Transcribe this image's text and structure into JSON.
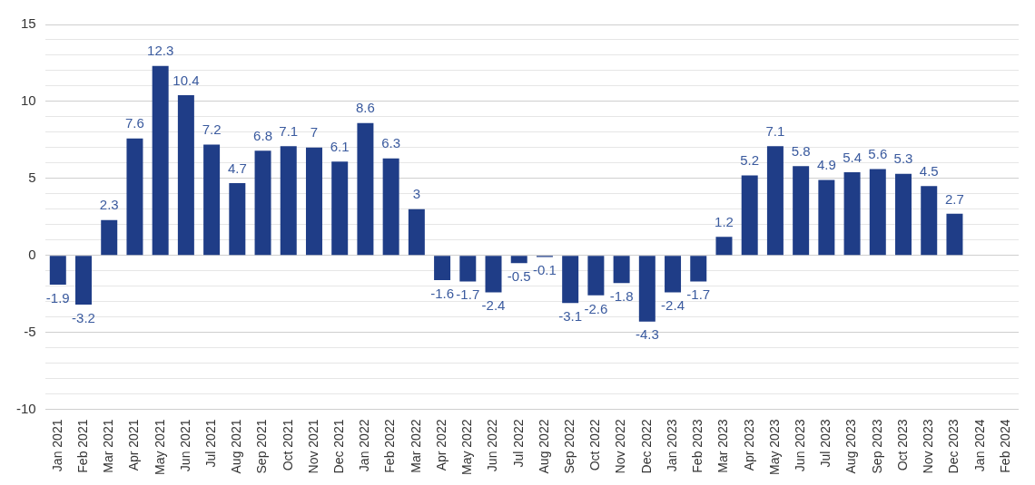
{
  "chart_data": {
    "type": "bar",
    "categories": [
      "Jan 2021",
      "Feb 2021",
      "Mar 2021",
      "Apr 2021",
      "May 2021",
      "Jun 2021",
      "Jul 2021",
      "Aug 2021",
      "Sep 2021",
      "Oct 2021",
      "Nov 2021",
      "Dec 2021",
      "Jan 2022",
      "Feb 2022",
      "Mar 2022",
      "Apr 2022",
      "May 2022",
      "Jun 2022",
      "Jul 2022",
      "Aug 2022",
      "Sep 2022",
      "Oct 2022",
      "Nov 2022",
      "Dec 2022",
      "Jan 2023",
      "Feb 2023",
      "Mar 2023",
      "Apr 2023",
      "May 2023",
      "Jun 2023",
      "Jul 2023",
      "Aug 2023",
      "Sep 2023",
      "Oct 2023",
      "Nov 2023",
      "Dec 2023",
      "Jan 2024",
      "Feb 2024"
    ],
    "values": [
      -1.9,
      -3.2,
      2.3,
      7.6,
      12.3,
      10.4,
      7.2,
      4.7,
      6.8,
      7.1,
      7,
      6.1,
      8.6,
      6.3,
      3,
      -1.6,
      -1.7,
      -2.4,
      -0.5,
      -0.1,
      -3.1,
      -2.6,
      -1.8,
      -4.3,
      -2.4,
      -1.7,
      1.2,
      5.2,
      7.1,
      5.8,
      4.9,
      5.4,
      5.6,
      5.3,
      4.5,
      2.7,
      null,
      null
    ],
    "color": "#1f3d87",
    "ylim": [
      -10,
      15
    ],
    "yticks": [
      -10,
      {
        "value": -9,
        "label": null
      },
      {
        "value": -8,
        "label": null
      },
      {
        "value": -7,
        "label": null
      },
      {
        "value": -6,
        "label": null
      },
      -5,
      {
        "value": -4,
        "label": null
      },
      {
        "value": -3,
        "label": null
      },
      {
        "value": -2,
        "label": null
      },
      {
        "value": -1,
        "label": null
      },
      0,
      {
        "value": 1,
        "label": null
      },
      {
        "value": 2,
        "label": null
      },
      {
        "value": 3,
        "label": null
      },
      {
        "value": 4,
        "label": null
      },
      5,
      {
        "value": 6,
        "label": null
      },
      {
        "value": 7,
        "label": null
      },
      {
        "value": 8,
        "label": null
      },
      {
        "value": 9,
        "label": null
      },
      10,
      {
        "value": 11,
        "label": null
      },
      {
        "value": 12,
        "label": null
      },
      {
        "value": 13,
        "label": null
      },
      {
        "value": 14,
        "label": null
      },
      15
    ],
    "grid": "y",
    "data_labels": true
  }
}
